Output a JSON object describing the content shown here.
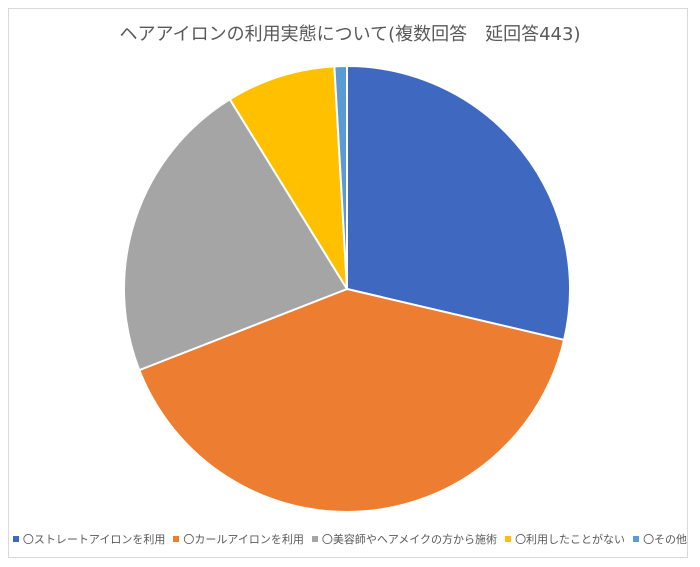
{
  "chart_data": {
    "type": "pie",
    "title": "ヘアアイロンの利用実態について(複数回答　延回答443)",
    "total": 443,
    "categories": [
      "〇ストレートアイロンを利用",
      "〇カールアイロンを利用",
      "〇美容師やヘアメイクの方から施術",
      "〇利用したことがない",
      "〇その他"
    ],
    "values": [
      127,
      179,
      98,
      35,
      4
    ],
    "percentages": [
      28.7,
      40.4,
      22.1,
      7.9,
      0.9
    ],
    "colors": [
      "#3F68C0",
      "#ED7D31",
      "#A5A5A5",
      "#FFC000",
      "#5B9BD5"
    ],
    "start_angle_deg": 0,
    "direction": "clockwise",
    "legend_position": "bottom",
    "data_labels": false
  },
  "legend": {
    "items": [
      {
        "label": "〇ストレートアイロンを利用",
        "color": "#3F68C0"
      },
      {
        "label": "〇カールアイロンを利用",
        "color": "#ED7D31"
      },
      {
        "label": "〇美容師やヘアメイクの方から施術",
        "color": "#A5A5A5"
      },
      {
        "label": "〇利用したことがない",
        "color": "#FFC000"
      },
      {
        "label": "〇その他",
        "color": "#5B9BD5"
      }
    ]
  }
}
